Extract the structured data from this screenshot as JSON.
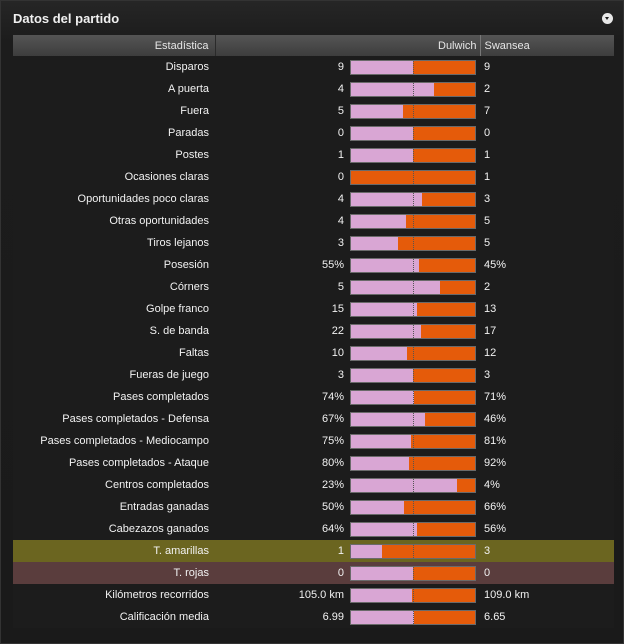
{
  "panel": {
    "title": "Datos del partido"
  },
  "table": {
    "headers": {
      "stat": "Estadística",
      "home": "Dulwich",
      "away": "Swansea"
    }
  },
  "colors": {
    "home_bar": "#d9a6d4",
    "away_bar": "#e55b0a",
    "yellow_row": "#6b6520",
    "red_row": "#5a3d3d"
  },
  "rows": [
    {
      "label": "Disparos",
      "home": "9",
      "away": "9",
      "home_share": 0.5
    },
    {
      "label": "A puerta",
      "home": "4",
      "away": "2",
      "home_share": 0.667
    },
    {
      "label": "Fuera",
      "home": "5",
      "away": "7",
      "home_share": 0.417
    },
    {
      "label": "Paradas",
      "home": "0",
      "away": "0",
      "home_share": 0.5
    },
    {
      "label": "Postes",
      "home": "1",
      "away": "1",
      "home_share": 0.5
    },
    {
      "label": "Ocasiones claras",
      "home": "0",
      "away": "1",
      "home_share": 0.0
    },
    {
      "label": "Oportunidades poco claras",
      "home": "4",
      "away": "3",
      "home_share": 0.571
    },
    {
      "label": "Otras oportunidades",
      "home": "4",
      "away": "5",
      "home_share": 0.444
    },
    {
      "label": "Tiros lejanos",
      "home": "3",
      "away": "5",
      "home_share": 0.375
    },
    {
      "label": "Posesión",
      "home": "55%",
      "away": "45%",
      "home_share": 0.55
    },
    {
      "label": "Córners",
      "home": "5",
      "away": "2",
      "home_share": 0.714
    },
    {
      "label": "Golpe franco",
      "home": "15",
      "away": "13",
      "home_share": 0.536
    },
    {
      "label": "S. de banda",
      "home": "22",
      "away": "17",
      "home_share": 0.564
    },
    {
      "label": "Faltas",
      "home": "10",
      "away": "12",
      "home_share": 0.455
    },
    {
      "label": "Fueras de juego",
      "home": "3",
      "away": "3",
      "home_share": 0.5
    },
    {
      "label": "Pases completados",
      "home": "74%",
      "away": "71%",
      "home_share": 0.51
    },
    {
      "label": "Pases completados - Defensa",
      "home": "67%",
      "away": "46%",
      "home_share": 0.593
    },
    {
      "label": "Pases completados - Mediocampo",
      "home": "75%",
      "away": "81%",
      "home_share": 0.481
    },
    {
      "label": "Pases completados - Ataque",
      "home": "80%",
      "away": "92%",
      "home_share": 0.465
    },
    {
      "label": "Centros completados",
      "home": "23%",
      "away": "4%",
      "home_share": 0.852
    },
    {
      "label": "Entradas ganadas",
      "home": "50%",
      "away": "66%",
      "home_share": 0.431
    },
    {
      "label": "Cabezazos ganados",
      "home": "64%",
      "away": "56%",
      "home_share": 0.533
    },
    {
      "label": "T. amarillas",
      "home": "1",
      "away": "3",
      "home_share": 0.25,
      "highlight": "yellow"
    },
    {
      "label": "T. rojas",
      "home": "0",
      "away": "0",
      "home_share": 0.5,
      "highlight": "red"
    },
    {
      "label": "Kilómetros recorridos",
      "home": "105.0 km",
      "away": "109.0 km",
      "home_share": 0.491
    },
    {
      "label": "Calificación media",
      "home": "6.99",
      "away": "6.65",
      "home_share": 0.512
    }
  ]
}
